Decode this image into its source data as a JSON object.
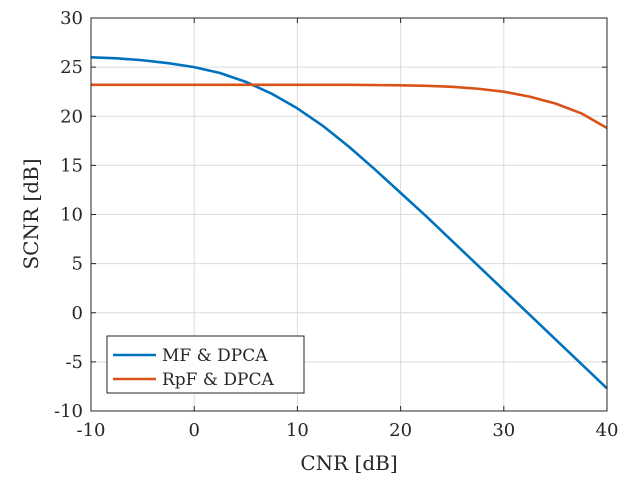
{
  "chart_data": {
    "type": "line",
    "title": "",
    "xlabel": "CNR [dB]",
    "ylabel": "SCNR [dB]",
    "xlim": [
      -10,
      40
    ],
    "ylim": [
      -10,
      30
    ],
    "xticks": [
      "-10",
      "0",
      "10",
      "20",
      "30",
      "40"
    ],
    "yticks": [
      "30",
      "25",
      "20",
      "15",
      "10",
      "5",
      "0",
      "-5",
      "-10"
    ],
    "grid": true,
    "legend_position": "bottom-left",
    "series": [
      {
        "name": "MF & DPCA",
        "color": "#0072BD",
        "x": [
          -10,
          -7.5,
          -5,
          -2.5,
          0,
          2.5,
          5,
          7.5,
          10,
          12.5,
          15,
          17.5,
          20,
          22.5,
          25,
          27.5,
          30,
          32.5,
          35,
          37.5,
          40
        ],
        "y": [
          26.0,
          25.9,
          25.7,
          25.4,
          25.0,
          24.4,
          23.5,
          22.3,
          20.8,
          19.0,
          16.9,
          14.6,
          12.2,
          9.8,
          7.3,
          4.8,
          2.3,
          -0.2,
          -2.7,
          -5.2,
          -7.7
        ]
      },
      {
        "name": "RpF & DPCA",
        "color": "#D95319",
        "x": [
          -10,
          -5,
          0,
          5,
          10,
          15,
          20,
          22.5,
          25,
          27.5,
          30,
          32.5,
          35,
          37.5,
          40
        ],
        "y": [
          23.2,
          23.2,
          23.2,
          23.2,
          23.2,
          23.2,
          23.15,
          23.1,
          23.0,
          22.8,
          22.5,
          22.0,
          21.3,
          20.3,
          18.8
        ]
      }
    ]
  }
}
